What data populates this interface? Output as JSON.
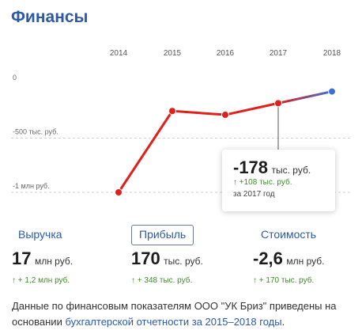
{
  "header": {
    "title": "Финансы"
  },
  "chart_data": {
    "type": "line",
    "x": [
      "2014",
      "2015",
      "2016",
      "2017",
      "2018"
    ],
    "y_ticks": [
      {
        "value": 0,
        "label": "0"
      },
      {
        "value": -500,
        "label": "-500 тыс. руб."
      },
      {
        "value": -1000,
        "label": "-1 млн руб."
      }
    ],
    "series": [
      {
        "values": [
          -1000,
          -250,
          -285,
          -178,
          -70
        ]
      }
    ],
    "highlighted_point": "2017",
    "colors": {
      "line": "#e0201b",
      "line_end": "#3c6fd6",
      "point_end": "#3c6fd6",
      "grid": "#cfcfcf"
    }
  },
  "tooltip": {
    "value": "-178",
    "unit": "тыс. руб.",
    "change": "↑ +108 тыс. руб.",
    "year": "за 2017 год"
  },
  "tabs": [
    {
      "label": "Выручка",
      "active": false
    },
    {
      "label": "Прибыль",
      "active": true
    },
    {
      "label": "Стоимость",
      "active": false
    }
  ],
  "metrics": [
    {
      "value": "17",
      "unit": "млн руб.",
      "change": "↑ + 1,2 млн руб."
    },
    {
      "value": "170",
      "unit": "тыс. руб.",
      "change": "↑ + 348 тыс. руб."
    },
    {
      "value": "-2,6",
      "unit": "млн руб.",
      "change": "↑ + 170 тыс. руб."
    }
  ],
  "footer": {
    "text": "Данные по финансовым показателям ООО \"УК Бриз\" приведены на основании ",
    "link": "бухгалтерской отчетности за 2015–2018 годы",
    "end": "."
  },
  "colors": {
    "accent": "#2c5aa8",
    "positive": "#3f8d2c"
  }
}
